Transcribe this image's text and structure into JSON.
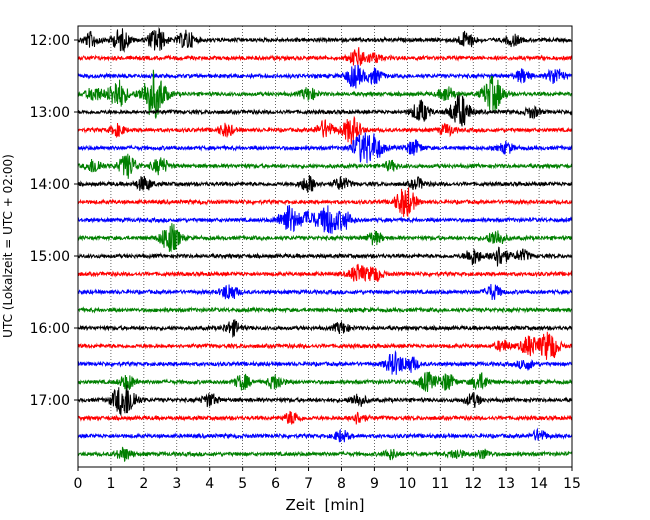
{
  "chart_data": {
    "type": "line",
    "title": "",
    "xlabel": "Zeit  [min]",
    "ylabel": "UTC (Lokalzeit = UTC + 02:00)",
    "xlim": [
      0,
      15
    ],
    "x_ticks": [
      0,
      1,
      2,
      3,
      4,
      5,
      6,
      7,
      8,
      9,
      10,
      11,
      12,
      13,
      14,
      15
    ],
    "grid": "vertical dotted",
    "trace_colors": [
      "#000000",
      "#ff0000",
      "#0000ff",
      "#008000"
    ],
    "y_tick_labels": [
      "12:00",
      "13:00",
      "14:00",
      "15:00",
      "16:00",
      "17:00"
    ],
    "traces": [
      {
        "start": "12:00",
        "events": [
          [
            0.4,
            0.8
          ],
          [
            1.3,
            1.2
          ],
          [
            2.4,
            1.3
          ],
          [
            3.3,
            1.0
          ],
          [
            11.8,
            0.9
          ],
          [
            13.2,
            0.6
          ]
        ]
      },
      {
        "start": "12:15",
        "events": [
          [
            8.5,
            1.0
          ],
          [
            9.0,
            0.5
          ]
        ]
      },
      {
        "start": "12:30",
        "events": [
          [
            8.4,
            1.2
          ],
          [
            9.0,
            0.8
          ],
          [
            13.5,
            0.7
          ],
          [
            14.5,
            0.9
          ]
        ]
      },
      {
        "start": "12:45",
        "events": [
          [
            0.5,
            0.8
          ],
          [
            1.2,
            1.6
          ],
          [
            2.3,
            2.6
          ],
          [
            7.0,
            0.7
          ],
          [
            11.2,
            0.8
          ],
          [
            12.6,
            1.9
          ]
        ]
      },
      {
        "start": "13:00",
        "events": [
          [
            10.4,
            1.2
          ],
          [
            11.6,
            1.8
          ],
          [
            13.8,
            0.6
          ]
        ]
      },
      {
        "start": "13:15",
        "events": [
          [
            1.2,
            0.6
          ],
          [
            4.5,
            0.7
          ],
          [
            7.5,
            1.0
          ],
          [
            8.3,
            1.4
          ],
          [
            11.2,
            0.6
          ]
        ]
      },
      {
        "start": "13:30",
        "events": [
          [
            8.6,
            1.5
          ],
          [
            9.0,
            1.3
          ],
          [
            10.2,
            0.8
          ],
          [
            13.0,
            0.6
          ]
        ]
      },
      {
        "start": "13:45",
        "events": [
          [
            0.5,
            0.8
          ],
          [
            1.5,
            1.3
          ],
          [
            2.5,
            0.9
          ],
          [
            9.5,
            0.5
          ]
        ]
      },
      {
        "start": "14:00",
        "events": [
          [
            2.0,
            0.8
          ],
          [
            7.0,
            0.9
          ],
          [
            8.0,
            0.7
          ],
          [
            10.3,
            0.6
          ]
        ]
      },
      {
        "start": "14:15",
        "events": [
          [
            9.8,
            0.6
          ],
          [
            10.0,
            1.3
          ]
        ]
      },
      {
        "start": "14:30",
        "events": [
          [
            6.4,
            1.6
          ],
          [
            7.0,
            0.9
          ],
          [
            7.6,
            1.6
          ],
          [
            8.1,
            0.9
          ]
        ]
      },
      {
        "start": "14:45",
        "events": [
          [
            2.8,
            1.6
          ],
          [
            9.0,
            0.7
          ],
          [
            12.7,
            0.9
          ]
        ]
      },
      {
        "start": "15:00",
        "events": [
          [
            12.0,
            0.9
          ],
          [
            12.8,
            1.1
          ],
          [
            13.5,
            0.6
          ]
        ]
      },
      {
        "start": "15:15",
        "events": [
          [
            8.5,
            1.0
          ],
          [
            9.0,
            0.8
          ]
        ]
      },
      {
        "start": "15:30",
        "events": [
          [
            4.6,
            0.9
          ],
          [
            12.6,
            0.8
          ]
        ]
      },
      {
        "start": "15:45",
        "events": []
      },
      {
        "start": "16:00",
        "events": [
          [
            4.7,
            0.8
          ],
          [
            8.0,
            0.6
          ]
        ]
      },
      {
        "start": "16:15",
        "events": [
          [
            12.9,
            0.6
          ],
          [
            13.7,
            1.1
          ],
          [
            14.3,
            1.6
          ]
        ]
      },
      {
        "start": "16:30",
        "events": [
          [
            9.6,
            1.2
          ],
          [
            10.1,
            0.8
          ],
          [
            13.6,
            0.6
          ]
        ]
      },
      {
        "start": "16:45",
        "events": [
          [
            1.5,
            0.8
          ],
          [
            5.0,
            0.8
          ],
          [
            6.0,
            0.8
          ],
          [
            10.6,
            1.0
          ],
          [
            11.2,
            0.9
          ],
          [
            12.2,
            0.9
          ]
        ]
      },
      {
        "start": "17:00",
        "events": [
          [
            1.2,
            0.8
          ],
          [
            1.5,
            1.6
          ],
          [
            4.0,
            0.7
          ],
          [
            8.5,
            0.7
          ],
          [
            12.0,
            0.7
          ]
        ]
      },
      {
        "start": "17:15",
        "events": [
          [
            6.5,
            0.7
          ],
          [
            8.5,
            0.6
          ]
        ]
      },
      {
        "start": "17:30",
        "events": [
          [
            8.0,
            0.6
          ],
          [
            14.0,
            0.6
          ]
        ]
      },
      {
        "start": "17:45",
        "events": [
          [
            1.4,
            0.7
          ],
          [
            9.5,
            0.5
          ],
          [
            11.5,
            0.5
          ],
          [
            12.3,
            0.5
          ]
        ]
      }
    ]
  }
}
